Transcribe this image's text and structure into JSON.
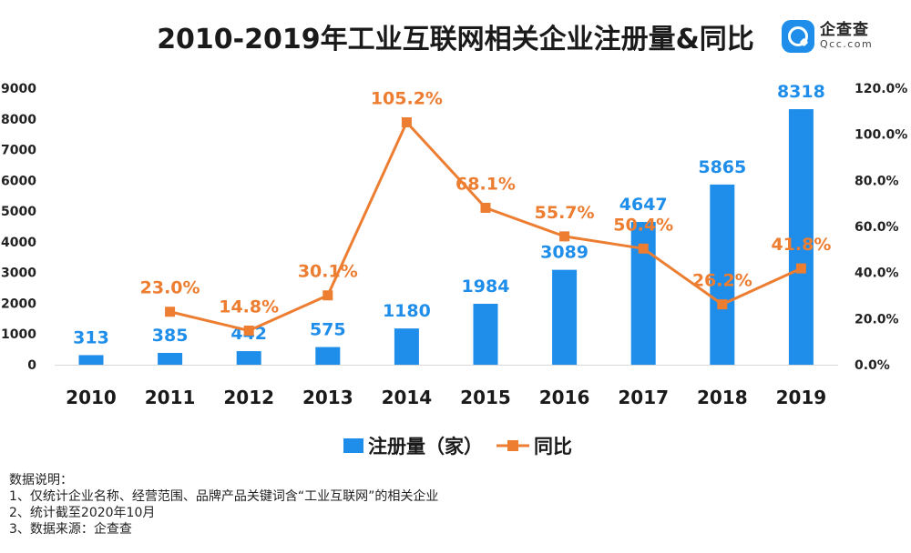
{
  "title": "2010-2019年工业互联网相关企业注册量&同比",
  "logo": {
    "name_cn": "企查查",
    "name_en": "Qcc.com",
    "icon": "qcc-logo-icon"
  },
  "colors": {
    "bar": "#1f8eea",
    "line": "#ed7d31",
    "bar_label": "#1f8eea",
    "line_label": "#ed7d31"
  },
  "chart_data": {
    "type": "bar",
    "categories": [
      "2010",
      "2011",
      "2012",
      "2013",
      "2014",
      "2015",
      "2016",
      "2017",
      "2018",
      "2019"
    ],
    "series": [
      {
        "name": "注册量（家）",
        "type": "bar",
        "axis": "left",
        "values": [
          313,
          385,
          442,
          575,
          1180,
          1984,
          3089,
          4647,
          5865,
          8318
        ],
        "labels": [
          "313",
          "385",
          "442",
          "575",
          "1180",
          "1984",
          "3089",
          "4647",
          "5865",
          "8318"
        ]
      },
      {
        "name": "同比",
        "type": "line",
        "axis": "right",
        "values": [
          null,
          23.0,
          14.8,
          30.1,
          105.2,
          68.1,
          55.7,
          50.4,
          26.2,
          41.8
        ],
        "labels": [
          "",
          "23.0%",
          "14.8%",
          "30.1%",
          "105.2%",
          "68.1%",
          "55.7%",
          "50.4%",
          "26.2%",
          "41.8%"
        ]
      }
    ],
    "y_left": {
      "min": 0,
      "max": 9000,
      "ticks": [
        "0",
        "1000",
        "2000",
        "3000",
        "4000",
        "5000",
        "6000",
        "7000",
        "8000",
        "9000"
      ]
    },
    "y_right": {
      "min": 0,
      "max": 120,
      "ticks": [
        "0.0%",
        "20.0%",
        "40.0%",
        "60.0%",
        "80.0%",
        "100.0%",
        "120.0%"
      ]
    },
    "grid": false,
    "legend": {
      "position": "bottom",
      "items": [
        "注册量（家）",
        "同比"
      ]
    }
  },
  "notes": {
    "heading": "数据说明：",
    "lines": [
      "1、仅统计企业名称、经营范围、品牌产品关键词含“工业互联网”的相关企业",
      "2、统计截至2020年10月",
      "3、数据来源：企查查"
    ]
  }
}
